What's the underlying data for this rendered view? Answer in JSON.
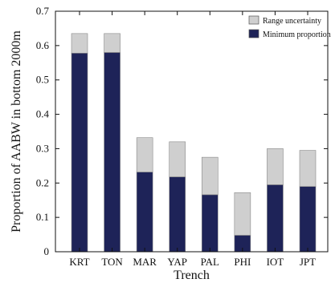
{
  "chart_data": {
    "type": "bar",
    "stacked": true,
    "categories": [
      "KRT",
      "TON",
      "MAR",
      "YAP",
      "PAL",
      "PHI",
      "IOT",
      "JPT"
    ],
    "series": [
      {
        "name": "Minimum proportion",
        "color": "#1e2358",
        "values": [
          0.578,
          0.58,
          0.232,
          0.218,
          0.166,
          0.048,
          0.195,
          0.19
        ]
      },
      {
        "name": "Range uncertainty",
        "color": "#cfcfcf",
        "values": [
          0.057,
          0.055,
          0.1,
          0.102,
          0.109,
          0.124,
          0.105,
          0.105
        ]
      }
    ],
    "xlabel": "Trench",
    "ylabel": "Proportion of AABW in bottom 2000m",
    "ylim": [
      0,
      0.7
    ],
    "yticks": [
      "0",
      "0.1",
      "0.2",
      "0.3",
      "0.4",
      "0.5",
      "0.6",
      "0.7"
    ],
    "legend_position": "top-right",
    "grid": false
  }
}
